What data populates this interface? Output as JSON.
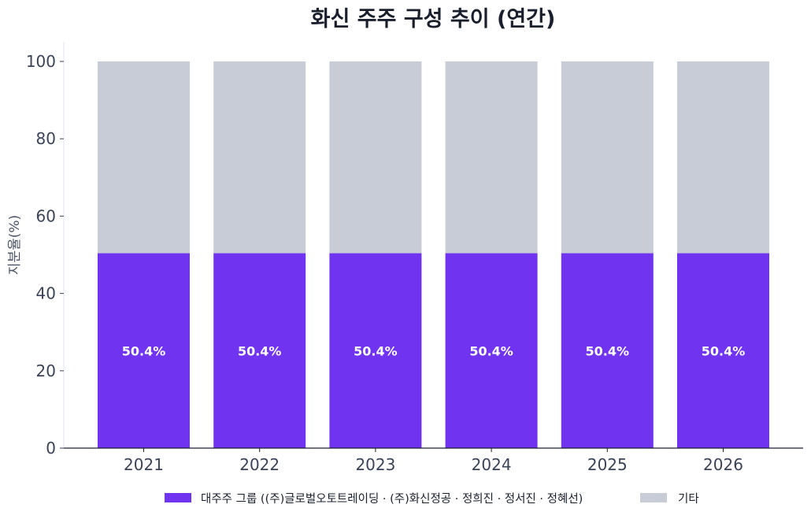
{
  "chart_data": {
    "type": "bar",
    "stacked": true,
    "title": "화신 주주 구성 추이 (연간)",
    "xlabel": "",
    "ylabel": "지분율(%)",
    "ylim": [
      0,
      100
    ],
    "yticks": [
      0,
      20,
      40,
      60,
      80,
      100
    ],
    "categories": [
      "2021",
      "2022",
      "2023",
      "2024",
      "2025",
      "2026"
    ],
    "series": [
      {
        "name": "대주주 그룹 ((주)글로벌오토트레이딩 · (주)화신정공 · 정희진 · 정서진 · 정혜선)",
        "values": [
          50.4,
          50.4,
          50.4,
          50.4,
          50.4,
          50.4
        ],
        "color": "#7033f0",
        "data_labels": [
          "50.4%",
          "50.4%",
          "50.4%",
          "50.4%",
          "50.4%",
          "50.4%"
        ]
      },
      {
        "name": "기타",
        "values": [
          49.6,
          49.6,
          49.6,
          49.6,
          49.6,
          49.6
        ],
        "color": "#c8ccd6"
      }
    ],
    "grid": false,
    "legend_position": "bottom"
  }
}
